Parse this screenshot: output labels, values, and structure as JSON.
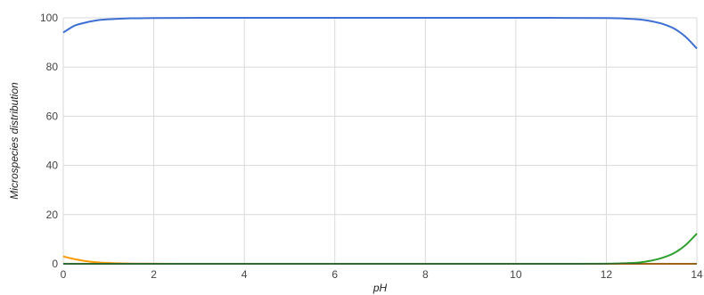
{
  "chart_data": {
    "type": "line",
    "title": "",
    "xlabel": "pH",
    "ylabel": "Microspecies distribution",
    "xlim": [
      0,
      14
    ],
    "ylim": [
      0,
      100
    ],
    "xticks": [
      "0",
      "2",
      "4",
      "6",
      "8",
      "10",
      "12",
      "14"
    ],
    "yticks": [
      "0",
      "20",
      "40",
      "60",
      "80",
      "100"
    ],
    "grid": true,
    "legend": "none",
    "series": [
      {
        "color": "#3d6fd3",
        "x": [
          0,
          0.25,
          0.5,
          0.75,
          1,
          1.5,
          2,
          3,
          4,
          6,
          8,
          10,
          12,
          12.5,
          12.75,
          13,
          13.25,
          13.5,
          13.75,
          14
        ],
        "values": [
          94,
          96.8,
          98.1,
          99,
          99.4,
          99.8,
          99.9,
          100,
          100,
          100,
          100,
          100,
          99.9,
          99.6,
          99.3,
          98.6,
          97.5,
          95.6,
          92.3,
          87.5
        ]
      },
      {
        "color": "#ff9900",
        "x": [
          0,
          0.25,
          0.5,
          0.75,
          1,
          1.25,
          1.5,
          2,
          3,
          4,
          6,
          8,
          10,
          12,
          14
        ],
        "values": [
          3,
          1.9,
          1.1,
          0.6,
          0.35,
          0.2,
          0.1,
          0.03,
          0,
          0,
          0,
          0,
          0,
          0,
          0
        ]
      },
      {
        "color": "#2ea02e",
        "x": [
          0,
          2,
          4,
          6,
          8,
          10,
          11,
          12,
          12.5,
          12.75,
          13,
          13.25,
          13.5,
          13.75,
          14
        ],
        "values": [
          0,
          0,
          0,
          0,
          0,
          0,
          0,
          0.05,
          0.3,
          0.6,
          1.3,
          2.5,
          4.4,
          7.6,
          12.3
        ]
      }
    ]
  }
}
